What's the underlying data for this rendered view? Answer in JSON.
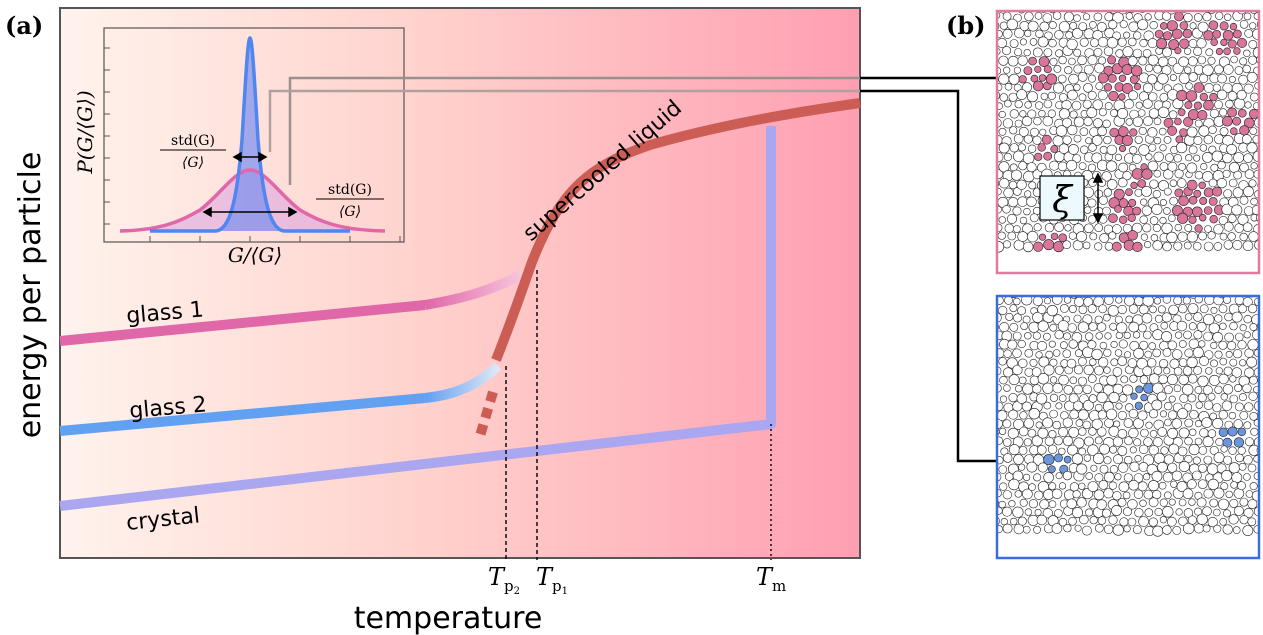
{
  "panel_a": {
    "label": "(a)",
    "xlabel": "temperature",
    "ylabel": "energy per particle",
    "curves": {
      "supercooled": "supercooled liquid",
      "glass1": "glass 1",
      "glass2": "glass 2",
      "crystal": "crystal"
    },
    "ticks": {
      "tp2_base": "T",
      "tp2_sub": "p",
      "tp2_subsub": "2",
      "tp1_base": "T",
      "tp1_sub": "p",
      "tp1_subsub": "1",
      "tm_base": "T",
      "tm_sub": "m"
    },
    "inset": {
      "ylabel": "P(G/⟨G⟩)",
      "xlabel": "G/⟨G⟩",
      "std_num": "std(G)",
      "std_den": "⟨G⟩"
    }
  },
  "panel_b": {
    "label": "(b)",
    "xi_symbol": "ξ"
  },
  "colors": {
    "supercooled": "#cc5d55",
    "glass1": "#e067a8",
    "glass2": "#62a0f2",
    "crystal": "#aaa6ef",
    "pink_cluster": "#d9749a",
    "blue_cluster": "#6b95dd",
    "pink_frame": "#e07aa0",
    "blue_frame": "#3a6be0"
  }
}
